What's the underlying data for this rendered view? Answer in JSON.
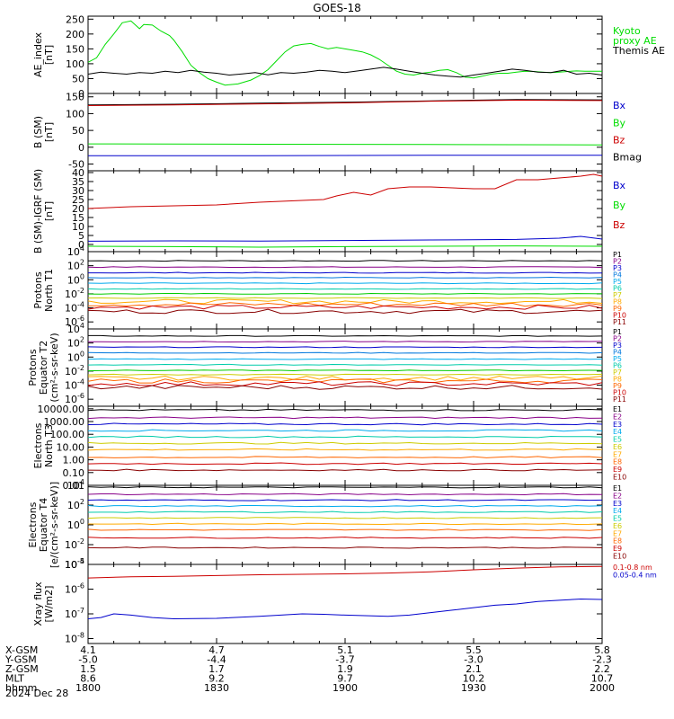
{
  "title": "GOES-18",
  "date_label": "2024 Dec 28",
  "colors": {
    "black": "#000000",
    "green": "#00dd00",
    "blue": "#0000cc",
    "red": "#cc0000",
    "P": [
      "#000000",
      "#880088",
      "#0000cc",
      "#0077dd",
      "#00aaee",
      "#00ccaa",
      "#00cc00",
      "#cccc00",
      "#ffaa00",
      "#ff6600",
      "#cc0000",
      "#880000"
    ]
  },
  "time_axis": {
    "ticks": [
      "1800",
      "1830",
      "1900",
      "1930",
      "2000"
    ],
    "minor_per_major": 5,
    "ephemeris": [
      {
        "label": "X-GSM",
        "values": [
          "4.1",
          "4.7",
          "5.1",
          "5.5",
          "5.8"
        ]
      },
      {
        "label": "Y-GSM",
        "values": [
          "-5.0",
          "-4.4",
          "-3.7",
          "-3.0",
          "-2.3"
        ]
      },
      {
        "label": "Z-GSM",
        "values": [
          "1.5",
          "1.7",
          "1.9",
          "2.1",
          "2.2"
        ]
      },
      {
        "label": "MLT",
        "values": [
          "8.6",
          "9.2",
          "9.7",
          "10.2",
          "10.7"
        ]
      },
      {
        "label": "hhmm",
        "values": [
          "1800",
          "1830",
          "1900",
          "1930",
          "2000"
        ]
      }
    ]
  },
  "chart_data": [
    {
      "type": "line",
      "ylabel": [
        "AE_index",
        "[nT]"
      ],
      "ylim": [
        0,
        260
      ],
      "ytick_labels": [
        "250",
        "200",
        "150",
        "100",
        "50",
        "0"
      ],
      "yticks": [
        250,
        200,
        150,
        100,
        50,
        0
      ],
      "legend": [
        {
          "lines": [
            "Kyoto",
            "proxy AE"
          ],
          "color": "green"
        },
        {
          "lines": [
            "Themis AE"
          ],
          "color": "black"
        }
      ],
      "series": [
        {
          "color": "green",
          "x": [
            0,
            2,
            4,
            6,
            8,
            10,
            12,
            13,
            15,
            17,
            19,
            20,
            22,
            24,
            26,
            28,
            30,
            32,
            35,
            38,
            40,
            42,
            44,
            46,
            48,
            50,
            52,
            54,
            56,
            58,
            60,
            62,
            64,
            66,
            68,
            70,
            72,
            74,
            76,
            78,
            80,
            82,
            84,
            86,
            88,
            90,
            92,
            94,
            96,
            98,
            100,
            102,
            104,
            106,
            108,
            110,
            112,
            114,
            116,
            118,
            120
          ],
          "y": [
            105,
            120,
            165,
            200,
            238,
            244,
            218,
            232,
            230,
            210,
            195,
            180,
            140,
            95,
            70,
            50,
            38,
            28,
            32,
            45,
            60,
            80,
            110,
            140,
            160,
            165,
            168,
            158,
            150,
            155,
            150,
            145,
            140,
            130,
            115,
            95,
            75,
            65,
            62,
            68,
            72,
            78,
            80,
            70,
            55,
            52,
            58,
            65,
            68,
            68,
            72,
            75,
            74,
            72,
            70,
            72,
            74,
            76,
            75,
            75,
            75
          ]
        },
        {
          "color": "black",
          "x": [
            0,
            3,
            6,
            9,
            12,
            15,
            18,
            21,
            24,
            27,
            30,
            33,
            36,
            39,
            42,
            45,
            48,
            51,
            54,
            57,
            60,
            63,
            66,
            69,
            72,
            75,
            78,
            81,
            84,
            87,
            90,
            93,
            96,
            99,
            102,
            105,
            108,
            111,
            114,
            117,
            120
          ],
          "y": [
            65,
            72,
            68,
            65,
            70,
            68,
            75,
            70,
            78,
            72,
            68,
            62,
            66,
            70,
            63,
            70,
            68,
            72,
            78,
            75,
            70,
            76,
            82,
            88,
            82,
            75,
            68,
            62,
            58,
            55,
            62,
            68,
            75,
            82,
            78,
            72,
            70,
            78,
            65,
            68,
            62
          ]
        }
      ]
    },
    {
      "type": "line",
      "ylabel": [
        "B (SM)",
        "[nT]"
      ],
      "ylim": [
        -70,
        160
      ],
      "ytick_labels": [
        "150",
        "100",
        "50",
        "0",
        "-50"
      ],
      "yticks": [
        150,
        100,
        50,
        0,
        -50
      ],
      "legend": [
        {
          "lines": [
            "Bx"
          ],
          "color": "blue"
        },
        {
          "lines": [
            "By"
          ],
          "color": "green"
        },
        {
          "lines": [
            "Bz"
          ],
          "color": "red"
        },
        {
          "lines": [
            "Bmag"
          ],
          "color": "black"
        }
      ],
      "series": [
        {
          "color": "black",
          "x": [
            0,
            20,
            40,
            60,
            80,
            100,
            120
          ],
          "y": [
            126,
            128,
            131,
            134,
            138,
            142,
            141
          ]
        },
        {
          "color": "red",
          "x": [
            0,
            20,
            40,
            60,
            80,
            100,
            120
          ],
          "y": [
            124,
            126,
            129,
            132,
            137,
            140,
            139
          ]
        },
        {
          "color": "green",
          "x": [
            0,
            40,
            80,
            120
          ],
          "y": [
            10,
            9,
            8,
            7
          ]
        },
        {
          "color": "blue",
          "x": [
            0,
            40,
            80,
            120
          ],
          "y": [
            -25,
            -25,
            -24,
            -24
          ]
        }
      ]
    },
    {
      "type": "line",
      "ylabel": [
        "B (SM)-IGRF (SM)",
        "[nT]"
      ],
      "ylim": [
        -4,
        41
      ],
      "ytick_labels": [
        "40",
        "35",
        "30",
        "25",
        "20",
        "15",
        "10",
        "5",
        "0"
      ],
      "yticks": [
        40,
        35,
        30,
        25,
        20,
        15,
        10,
        5,
        0
      ],
      "legend": [
        {
          "lines": [
            "Bx"
          ],
          "color": "blue"
        },
        {
          "lines": [
            "By"
          ],
          "color": "green"
        },
        {
          "lines": [
            "Bz"
          ],
          "color": "red"
        }
      ],
      "series": [
        {
          "color": "red",
          "x": [
            0,
            10,
            20,
            30,
            40,
            50,
            55,
            58,
            62,
            66,
            70,
            75,
            80,
            90,
            95,
            100,
            105,
            110,
            115,
            118,
            120
          ],
          "y": [
            20,
            21,
            21.5,
            22,
            23.5,
            24.5,
            25,
            27,
            29,
            27.5,
            31,
            32,
            32,
            31,
            31,
            36,
            36,
            37,
            38,
            39,
            38
          ]
        },
        {
          "color": "blue",
          "x": [
            0,
            20,
            40,
            60,
            80,
            100,
            110,
            115,
            120
          ],
          "y": [
            1.8,
            2,
            1.9,
            2.2,
            2.5,
            2.8,
            3.5,
            4.5,
            3
          ]
        },
        {
          "color": "green",
          "x": [
            0,
            20,
            40,
            60,
            80,
            100,
            120
          ],
          "y": [
            -1,
            -1.2,
            -1.5,
            -1.2,
            -1,
            -0.8,
            -1
          ]
        }
      ]
    },
    {
      "type": "line",
      "yscale": "log",
      "ylabel": [
        "Protons",
        "North T1"
      ],
      "ylim_exp": [
        -7,
        4
      ],
      "ytick_exps": [
        4,
        2,
        0,
        -2,
        -4,
        -6
      ],
      "legend": [
        {
          "lines": [
            "P1"
          ],
          "ci": 0
        },
        {
          "lines": [
            "P2"
          ],
          "ci": 1
        },
        {
          "lines": [
            "P3"
          ],
          "ci": 2
        },
        {
          "lines": [
            "P4"
          ],
          "ci": 3
        },
        {
          "lines": [
            "P5"
          ],
          "ci": 4
        },
        {
          "lines": [
            "P6"
          ],
          "ci": 5
        },
        {
          "lines": [
            "P7"
          ],
          "ci": 7
        },
        {
          "lines": [
            "P8"
          ],
          "ci": 8
        },
        {
          "lines": [
            "P9"
          ],
          "ci": 9
        },
        {
          "lines": [
            "P10"
          ],
          "ci": 10
        },
        {
          "lines": [
            "P11"
          ],
          "ci": 11
        }
      ],
      "levels": [
        {
          "ci": 0,
          "v": 2.7
        },
        {
          "ci": 1,
          "v": 1.8
        },
        {
          "ci": 2,
          "v": 1.0
        },
        {
          "ci": 3,
          "v": 0.3
        },
        {
          "ci": 4,
          "v": -0.5
        },
        {
          "ci": 5,
          "v": -1.3
        },
        {
          "ci": 6,
          "v": -2.0
        },
        {
          "ci": 7,
          "v": -2.6
        },
        {
          "ci": 8,
          "v": -3.1
        },
        {
          "ci": 9,
          "v": -3.5
        },
        {
          "ci": 10,
          "v": -3.9
        },
        {
          "ci": 11,
          "v": -4.5
        }
      ]
    },
    {
      "type": "line",
      "yscale": "log",
      "ylabel": [
        "Protons",
        "Equator T2",
        "(cm²-s-sr-keV)"
      ],
      "ylim_exp": [
        -7,
        4
      ],
      "ytick_exps": [
        4,
        2,
        0,
        -2,
        -4,
        -6
      ],
      "legend": [
        {
          "lines": [
            "P1"
          ],
          "ci": 0
        },
        {
          "lines": [
            "P2"
          ],
          "ci": 1
        },
        {
          "lines": [
            "P3"
          ],
          "ci": 2
        },
        {
          "lines": [
            "P4"
          ],
          "ci": 3
        },
        {
          "lines": [
            "P5"
          ],
          "ci": 4
        },
        {
          "lines": [
            "P6"
          ],
          "ci": 5
        },
        {
          "lines": [
            "P7"
          ],
          "ci": 7
        },
        {
          "lines": [
            "P8"
          ],
          "ci": 8
        },
        {
          "lines": [
            "P9"
          ],
          "ci": 9
        },
        {
          "lines": [
            "P10"
          ],
          "ci": 10
        },
        {
          "lines": [
            "P11"
          ],
          "ci": 11
        }
      ],
      "levels": [
        {
          "ci": 0,
          "v": 3.0
        },
        {
          "ci": 1,
          "v": 2.2
        },
        {
          "ci": 2,
          "v": 1.4
        },
        {
          "ci": 3,
          "v": 0.6
        },
        {
          "ci": 4,
          "v": -0.3
        },
        {
          "ci": 5,
          "v": -1.1
        },
        {
          "ci": 6,
          "v": -1.9
        },
        {
          "ci": 7,
          "v": -2.5
        },
        {
          "ci": 8,
          "v": -3.0
        },
        {
          "ci": 9,
          "v": -3.4
        },
        {
          "ci": 10,
          "v": -3.8
        },
        {
          "ci": 11,
          "v": -4.3
        }
      ]
    },
    {
      "type": "line",
      "yscale": "log",
      "ylabel": [
        "Electrons",
        "North T3"
      ],
      "ylim_exp": [
        -2,
        4.2
      ],
      "ytick_labels": [
        "10000.00",
        "1000.00",
        "100.00",
        "10.00",
        "1.00",
        "0.10",
        "0.01"
      ],
      "ytick_exps": [
        4,
        3,
        2,
        1,
        0,
        -1,
        -2
      ],
      "legend": [
        {
          "lines": [
            "E1"
          ],
          "ci": 0
        },
        {
          "lines": [
            "E2"
          ],
          "ci": 1
        },
        {
          "lines": [
            "E3"
          ],
          "ci": 2
        },
        {
          "lines": [
            "E4"
          ],
          "ci": 4
        },
        {
          "lines": [
            "E5"
          ],
          "ci": 5
        },
        {
          "lines": [
            "E6"
          ],
          "ci": 7
        },
        {
          "lines": [
            "E7"
          ],
          "ci": 8
        },
        {
          "lines": [
            "E8"
          ],
          "ci": 9
        },
        {
          "lines": [
            "E9"
          ],
          "ci": 10
        },
        {
          "lines": [
            "E10"
          ],
          "ci": 11
        }
      ],
      "levels": [
        {
          "ci": 0,
          "v": 3.9
        },
        {
          "ci": 1,
          "v": 3.3
        },
        {
          "ci": 2,
          "v": 2.8
        },
        {
          "ci": 4,
          "v": 2.3
        },
        {
          "ci": 5,
          "v": 1.8
        },
        {
          "ci": 7,
          "v": 1.3
        },
        {
          "ci": 8,
          "v": 0.8
        },
        {
          "ci": 9,
          "v": 0.2
        },
        {
          "ci": 10,
          "v": -0.3
        },
        {
          "ci": 11,
          "v": -0.8
        }
      ]
    },
    {
      "type": "line",
      "yscale": "log",
      "ylabel": [
        "Electrons",
        "Equator T4",
        "[e/(cm²-s-sr-keV)]"
      ],
      "ylim_exp": [
        -4,
        4
      ],
      "ytick_exps": [
        4,
        2,
        0,
        -2,
        -4
      ],
      "legend": [
        {
          "lines": [
            "E1"
          ],
          "ci": 0
        },
        {
          "lines": [
            "E2"
          ],
          "ci": 1
        },
        {
          "lines": [
            "E3"
          ],
          "ci": 2
        },
        {
          "lines": [
            "E4"
          ],
          "ci": 4
        },
        {
          "lines": [
            "E5"
          ],
          "ci": 5
        },
        {
          "lines": [
            "E6"
          ],
          "ci": 7
        },
        {
          "lines": [
            "E7"
          ],
          "ci": 8
        },
        {
          "lines": [
            "E8"
          ],
          "ci": 9
        },
        {
          "lines": [
            "E9"
          ],
          "ci": 10
        },
        {
          "lines": [
            "E10"
          ],
          "ci": 11
        }
      ],
      "levels": [
        {
          "ci": 0,
          "v": 3.8
        },
        {
          "ci": 1,
          "v": 3.1
        },
        {
          "ci": 2,
          "v": 2.5
        },
        {
          "ci": 4,
          "v": 1.9
        },
        {
          "ci": 5,
          "v": 1.3
        },
        {
          "ci": 7,
          "v": 0.7
        },
        {
          "ci": 8,
          "v": 0.1
        },
        {
          "ci": 9,
          "v": -0.5
        },
        {
          "ci": 10,
          "v": -1.3
        },
        {
          "ci": 11,
          "v": -2.3
        }
      ]
    },
    {
      "type": "line",
      "yscale": "log",
      "ylabel": [
        "Xray flux",
        "[W/m2]"
      ],
      "ylim_exp": [
        -8.2,
        -5
      ],
      "ytick_exps": [
        -5,
        -6,
        -7,
        -8
      ],
      "legend": [
        {
          "lines": [
            "0.1-0.8 nm"
          ],
          "color": "red"
        },
        {
          "lines": [
            "0.05-0.4 nm"
          ],
          "color": "blue"
        }
      ],
      "series": [
        {
          "color": "red",
          "x": [
            0,
            10,
            20,
            30,
            40,
            50,
            60,
            70,
            80,
            90,
            100,
            110,
            120
          ],
          "y": [
            -5.55,
            -5.5,
            -5.48,
            -5.45,
            -5.42,
            -5.4,
            -5.38,
            -5.35,
            -5.3,
            -5.22,
            -5.15,
            -5.1,
            -5.08
          ]
        },
        {
          "color": "blue",
          "x": [
            0,
            3,
            6,
            10,
            15,
            20,
            30,
            40,
            45,
            50,
            55,
            60,
            70,
            75,
            80,
            85,
            90,
            95,
            100,
            105,
            110,
            115,
            120
          ],
          "y": [
            -7.2,
            -7.15,
            -7.0,
            -7.05,
            -7.15,
            -7.2,
            -7.18,
            -7.1,
            -7.05,
            -7.0,
            -7.02,
            -7.05,
            -7.1,
            -7.05,
            -6.95,
            -6.85,
            -6.75,
            -6.65,
            -6.6,
            -6.5,
            -6.45,
            -6.4,
            -6.42
          ]
        }
      ]
    }
  ]
}
